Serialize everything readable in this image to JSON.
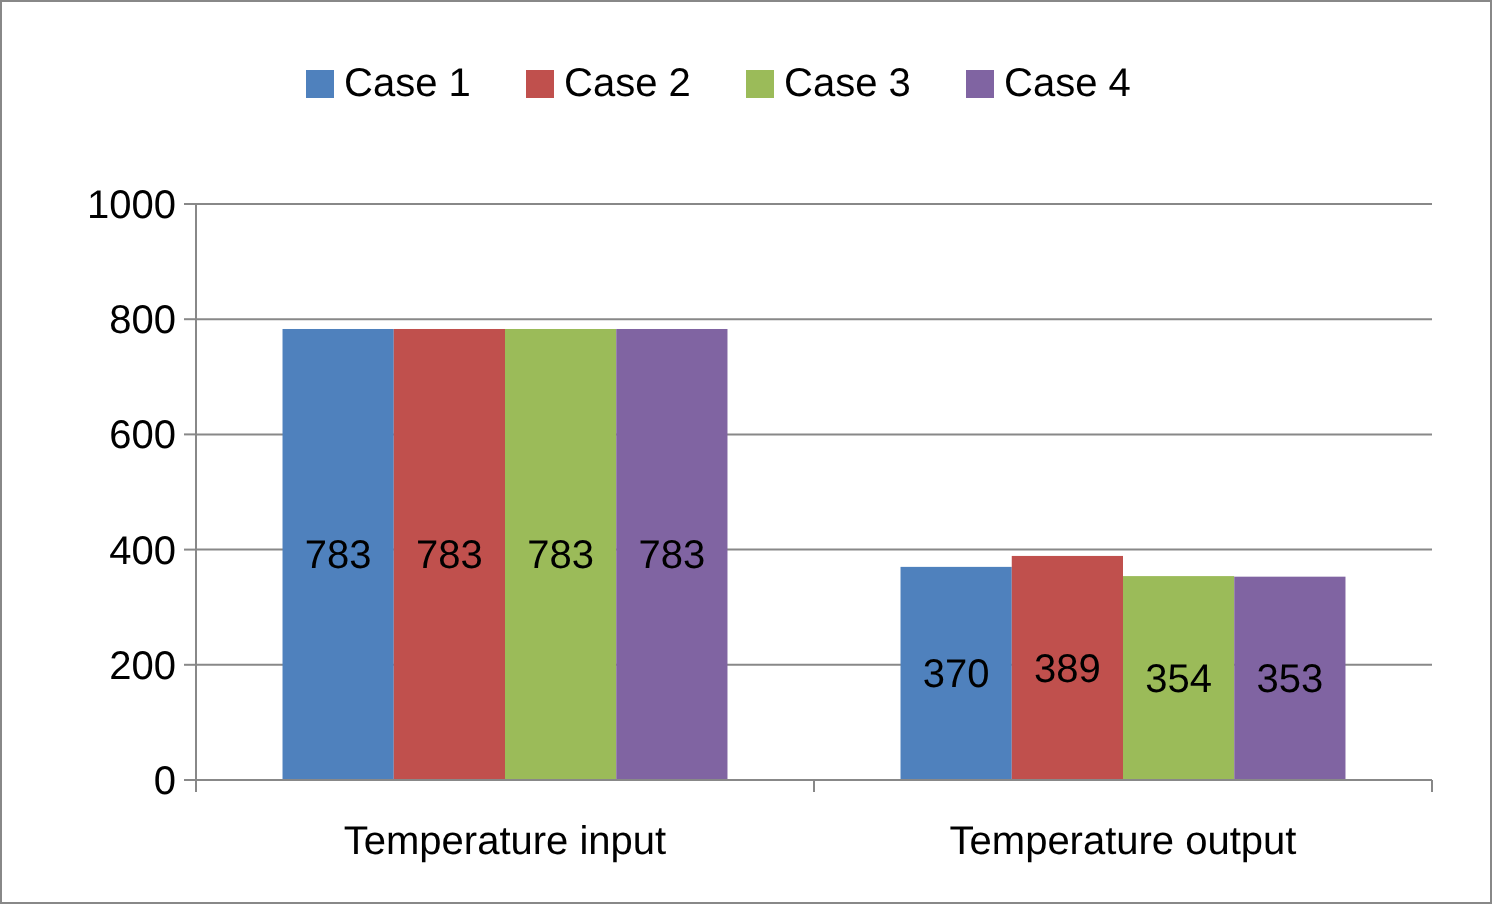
{
  "chart_data": {
    "type": "bar",
    "categories": [
      "Temperature input",
      "Temperature output"
    ],
    "series": [
      {
        "name": "Case 1",
        "color": "#4f81bd",
        "values": [
          783,
          370
        ]
      },
      {
        "name": "Case 2",
        "color": "#c0504d",
        "values": [
          783,
          389
        ]
      },
      {
        "name": "Case 3",
        "color": "#9bbb59",
        "values": [
          783,
          354
        ]
      },
      {
        "name": "Case 4",
        "color": "#8064a2",
        "values": [
          783,
          353
        ]
      }
    ],
    "ylim": [
      0,
      1000
    ],
    "yticks": [
      0,
      200,
      400,
      600,
      800,
      1000
    ],
    "grid": "y",
    "legend": "top",
    "data_labels": true
  }
}
